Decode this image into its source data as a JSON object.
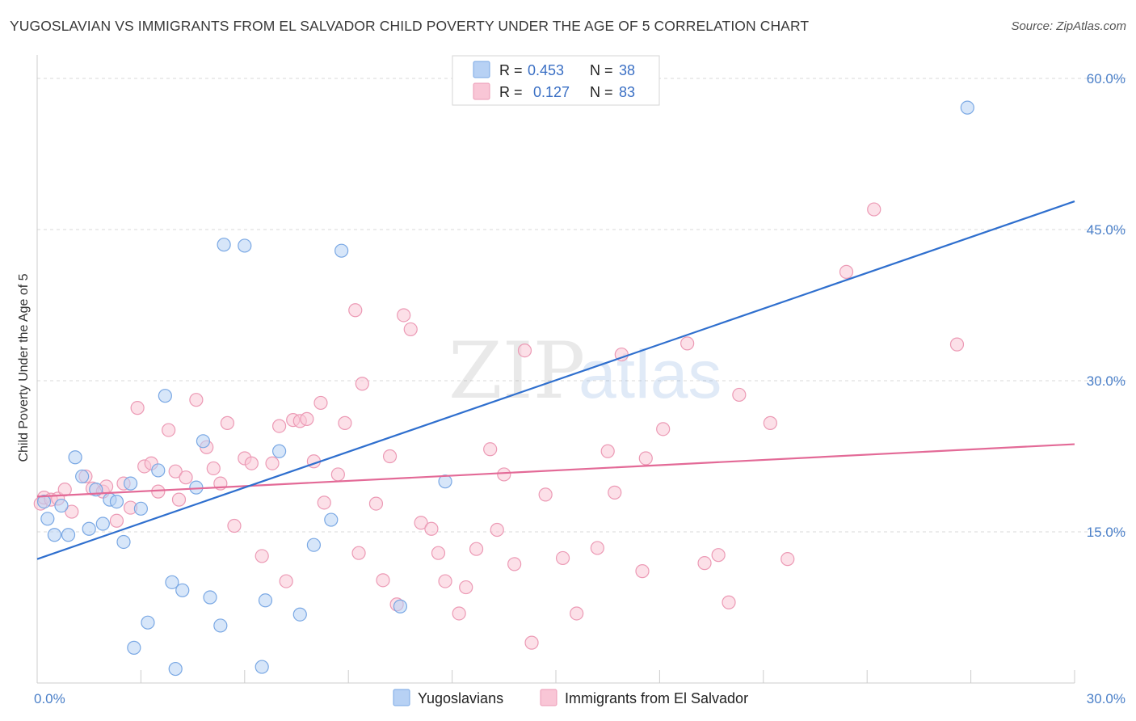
{
  "header": {
    "title": "YUGOSLAVIAN VS IMMIGRANTS FROM EL SALVADOR CHILD POVERTY UNDER THE AGE OF 5 CORRELATION CHART",
    "source": "Source: ZipAtlas.com"
  },
  "watermark": {
    "zip": "ZIP",
    "atlas": "atlas"
  },
  "legend": {
    "r_label": "R =",
    "n_label": "N =",
    "rows": [
      {
        "r": "0.453",
        "n": "38"
      },
      {
        "r": "0.127",
        "n": "83"
      }
    ]
  },
  "colors": {
    "blue_fill": "#b7d1f4",
    "blue_stroke": "#7aa8e4",
    "blue_line": "#2f6fce",
    "pink_fill": "#f9c6d6",
    "pink_stroke": "#ec9ab5",
    "pink_line": "#e36a97",
    "tick": "#4a7fc8",
    "grid": "#d8d8d8"
  },
  "chart_data": {
    "type": "scatter",
    "title": "YUGOSLAVIAN VS IMMIGRANTS FROM EL SALVADOR CHILD POVERTY UNDER THE AGE OF 5 CORRELATION CHART",
    "xlabel": "",
    "ylabel": "Child Poverty Under the Age of 5",
    "xlim": [
      0,
      30
    ],
    "ylim": [
      0,
      60
    ],
    "x_tick_labels": [
      "0.0%",
      "30.0%"
    ],
    "y_ticks": [
      15,
      30,
      45,
      60
    ],
    "y_tick_labels": [
      "15.0%",
      "30.0%",
      "45.0%",
      "60.0%"
    ],
    "grid": true,
    "legend_position": "top-center",
    "series": [
      {
        "name": "Yugoslavians",
        "r": 0.453,
        "n": 38,
        "trend": {
          "x": [
            0,
            30
          ],
          "y": [
            12.3,
            47.8
          ]
        },
        "points": [
          {
            "x": 0.2,
            "y": 18.0
          },
          {
            "x": 0.3,
            "y": 16.3
          },
          {
            "x": 0.5,
            "y": 14.7
          },
          {
            "x": 0.7,
            "y": 17.6
          },
          {
            "x": 0.9,
            "y": 14.7
          },
          {
            "x": 1.1,
            "y": 22.4
          },
          {
            "x": 1.3,
            "y": 20.5
          },
          {
            "x": 1.5,
            "y": 15.3
          },
          {
            "x": 1.7,
            "y": 19.2
          },
          {
            "x": 1.9,
            "y": 15.8
          },
          {
            "x": 2.1,
            "y": 18.2
          },
          {
            "x": 2.3,
            "y": 18.0
          },
          {
            "x": 2.5,
            "y": 14.0
          },
          {
            "x": 2.7,
            "y": 19.8
          },
          {
            "x": 3.0,
            "y": 17.3
          },
          {
            "x": 3.2,
            "y": 6.0
          },
          {
            "x": 3.5,
            "y": 21.1
          },
          {
            "x": 3.7,
            "y": 28.5
          },
          {
            "x": 3.9,
            "y": 10.0
          },
          {
            "x": 4.2,
            "y": 9.2
          },
          {
            "x": 4.6,
            "y": 19.4
          },
          {
            "x": 4.8,
            "y": 24.0
          },
          {
            "x": 5.0,
            "y": 8.5
          },
          {
            "x": 5.3,
            "y": 5.7
          },
          {
            "x": 5.4,
            "y": 43.5
          },
          {
            "x": 6.0,
            "y": 43.4
          },
          {
            "x": 6.5,
            "y": 1.6
          },
          {
            "x": 6.6,
            "y": 8.2
          },
          {
            "x": 7.0,
            "y": 23.0
          },
          {
            "x": 7.6,
            "y": 6.8
          },
          {
            "x": 8.0,
            "y": 13.7
          },
          {
            "x": 8.5,
            "y": 16.2
          },
          {
            "x": 8.8,
            "y": 42.9
          },
          {
            "x": 10.5,
            "y": 7.6
          },
          {
            "x": 11.8,
            "y": 20.0
          },
          {
            "x": 2.8,
            "y": 3.5
          },
          {
            "x": 4.0,
            "y": 1.4
          },
          {
            "x": 26.9,
            "y": 57.1
          }
        ]
      },
      {
        "name": "Immigrants from El Salvador",
        "r": 0.127,
        "n": 83,
        "trend": {
          "x": [
            0,
            30
          ],
          "y": [
            18.5,
            23.7
          ]
        },
        "points": [
          {
            "x": 0.1,
            "y": 17.8
          },
          {
            "x": 0.2,
            "y": 18.4
          },
          {
            "x": 0.4,
            "y": 18.2
          },
          {
            "x": 0.6,
            "y": 18.3
          },
          {
            "x": 0.8,
            "y": 19.2
          },
          {
            "x": 1.0,
            "y": 17.0
          },
          {
            "x": 1.4,
            "y": 20.5
          },
          {
            "x": 1.6,
            "y": 19.3
          },
          {
            "x": 1.9,
            "y": 19.0
          },
          {
            "x": 2.0,
            "y": 19.5
          },
          {
            "x": 2.3,
            "y": 16.1
          },
          {
            "x": 2.5,
            "y": 19.8
          },
          {
            "x": 2.7,
            "y": 17.4
          },
          {
            "x": 2.9,
            "y": 27.3
          },
          {
            "x": 3.1,
            "y": 21.5
          },
          {
            "x": 3.3,
            "y": 21.8
          },
          {
            "x": 3.5,
            "y": 19.0
          },
          {
            "x": 3.8,
            "y": 25.1
          },
          {
            "x": 4.0,
            "y": 21.0
          },
          {
            "x": 4.1,
            "y": 18.2
          },
          {
            "x": 4.3,
            "y": 20.4
          },
          {
            "x": 4.6,
            "y": 28.1
          },
          {
            "x": 4.9,
            "y": 23.4
          },
          {
            "x": 5.1,
            "y": 21.3
          },
          {
            "x": 5.3,
            "y": 19.8
          },
          {
            "x": 5.5,
            "y": 25.8
          },
          {
            "x": 5.7,
            "y": 15.6
          },
          {
            "x": 6.0,
            "y": 22.3
          },
          {
            "x": 6.2,
            "y": 21.8
          },
          {
            "x": 6.5,
            "y": 12.6
          },
          {
            "x": 6.8,
            "y": 21.8
          },
          {
            "x": 7.0,
            "y": 25.5
          },
          {
            "x": 7.2,
            "y": 10.1
          },
          {
            "x": 7.4,
            "y": 26.1
          },
          {
            "x": 7.6,
            "y": 26.0
          },
          {
            "x": 7.8,
            "y": 26.2
          },
          {
            "x": 8.0,
            "y": 22.0
          },
          {
            "x": 8.2,
            "y": 27.8
          },
          {
            "x": 8.3,
            "y": 17.9
          },
          {
            "x": 8.7,
            "y": 20.7
          },
          {
            "x": 8.9,
            "y": 25.8
          },
          {
            "x": 9.2,
            "y": 37.0
          },
          {
            "x": 9.3,
            "y": 12.9
          },
          {
            "x": 9.4,
            "y": 29.7
          },
          {
            "x": 9.8,
            "y": 17.8
          },
          {
            "x": 10.0,
            "y": 10.2
          },
          {
            "x": 10.2,
            "y": 22.5
          },
          {
            "x": 10.4,
            "y": 7.8
          },
          {
            "x": 10.6,
            "y": 36.5
          },
          {
            "x": 10.8,
            "y": 35.1
          },
          {
            "x": 11.1,
            "y": 15.9
          },
          {
            "x": 11.4,
            "y": 15.3
          },
          {
            "x": 11.6,
            "y": 12.9
          },
          {
            "x": 11.8,
            "y": 10.1
          },
          {
            "x": 12.2,
            "y": 6.9
          },
          {
            "x": 12.4,
            "y": 9.5
          },
          {
            "x": 12.7,
            "y": 13.3
          },
          {
            "x": 13.1,
            "y": 23.2
          },
          {
            "x": 13.3,
            "y": 15.2
          },
          {
            "x": 13.5,
            "y": 20.7
          },
          {
            "x": 13.8,
            "y": 11.8
          },
          {
            "x": 14.1,
            "y": 33.0
          },
          {
            "x": 14.3,
            "y": 4.0
          },
          {
            "x": 14.7,
            "y": 18.7
          },
          {
            "x": 15.2,
            "y": 12.4
          },
          {
            "x": 15.6,
            "y": 6.9
          },
          {
            "x": 16.2,
            "y": 13.4
          },
          {
            "x": 16.5,
            "y": 23.0
          },
          {
            "x": 16.7,
            "y": 18.9
          },
          {
            "x": 16.9,
            "y": 32.6
          },
          {
            "x": 17.5,
            "y": 11.1
          },
          {
            "x": 17.6,
            "y": 22.3
          },
          {
            "x": 18.1,
            "y": 25.2
          },
          {
            "x": 18.8,
            "y": 33.7
          },
          {
            "x": 19.3,
            "y": 11.9
          },
          {
            "x": 19.7,
            "y": 12.7
          },
          {
            "x": 20.0,
            "y": 8.0
          },
          {
            "x": 20.3,
            "y": 28.6
          },
          {
            "x": 21.2,
            "y": 25.8
          },
          {
            "x": 21.7,
            "y": 12.3
          },
          {
            "x": 23.4,
            "y": 40.8
          },
          {
            "x": 24.2,
            "y": 47.0
          },
          {
            "x": 26.6,
            "y": 33.6
          }
        ]
      }
    ]
  }
}
